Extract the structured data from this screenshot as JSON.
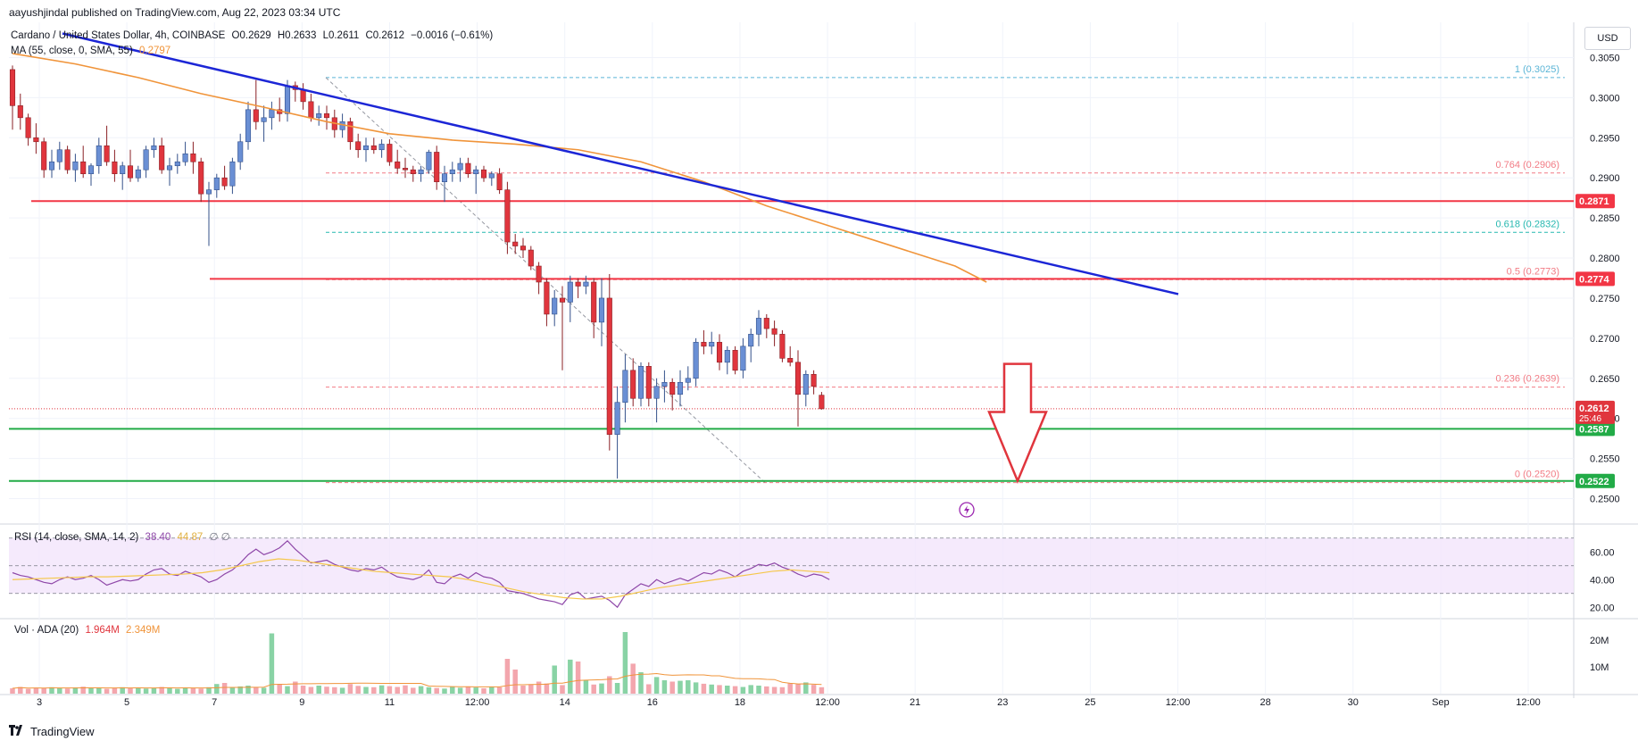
{
  "header": {
    "publisher": "aayushjindal published on TradingView.com, Aug 22, 2023 03:34 UTC"
  },
  "symbol_line": {
    "name": "Cardano / United States Dollar, 4h, COINBASE",
    "open": "O0.2629",
    "high": "H0.2633",
    "low": "L0.2611",
    "close": "C0.2612",
    "change": "−0.0016 (−0.61%)"
  },
  "ma_legend": {
    "label": "MA (55, close, 0, SMA, 55)",
    "value": "0.2797"
  },
  "rsi_legend": {
    "label": "RSI (14, close, SMA, 14, 2)",
    "value1": "38.40",
    "value2": "44.87",
    "extra": "∅  ∅"
  },
  "vol_legend": {
    "label": "Vol · ADA (20)",
    "value1": "1.964M",
    "value2": "2.349M"
  },
  "currency_button": "USD",
  "footer_logo": "TradingView",
  "colors": {
    "up": "#6a8fd4",
    "down": "#e0353d",
    "ma": "#f0943a",
    "trendline": "#1c26d6",
    "level": "#f23645",
    "support": "#22ab47",
    "fib": "#f27c85",
    "fib_top": "#5bb5d6",
    "fib_618": "#27b8b0",
    "rsi": "#8e47a8",
    "rsi_ma": "#f5c74a",
    "vol_up": "#89d3a5",
    "vol_down": "#f3a6ad"
  },
  "chart_data": {
    "type": "candlestick",
    "interval": "4h",
    "price_axis": {
      "ylim": [
        0.2475,
        0.3085
      ],
      "ticks": [
        "0.3050",
        "0.3000",
        "0.2950",
        "0.2900",
        "0.2850",
        "0.2800",
        "0.2750",
        "0.2700",
        "0.2650",
        "0.2600",
        "0.2550",
        "0.2500"
      ]
    },
    "x_ticks": [
      "3",
      "5",
      "7",
      "9",
      "11",
      "12:00",
      "14",
      "16",
      "18",
      "12:00",
      "21",
      "23",
      "25",
      "12:00",
      "28",
      "30",
      "Sep",
      "12:00"
    ],
    "candles": [
      [
        0.3035,
        0.304,
        0.296,
        0.299
      ],
      [
        0.299,
        0.3005,
        0.296,
        0.2975
      ],
      [
        0.2975,
        0.298,
        0.294,
        0.295
      ],
      [
        0.295,
        0.2968,
        0.293,
        0.2945
      ],
      [
        0.2945,
        0.295,
        0.29,
        0.291
      ],
      [
        0.291,
        0.2935,
        0.29,
        0.292
      ],
      [
        0.292,
        0.2945,
        0.291,
        0.2935
      ],
      [
        0.2935,
        0.294,
        0.2905,
        0.291
      ],
      [
        0.291,
        0.293,
        0.2895,
        0.292
      ],
      [
        0.292,
        0.294,
        0.29,
        0.2905
      ],
      [
        0.2905,
        0.2918,
        0.289,
        0.2915
      ],
      [
        0.2915,
        0.295,
        0.2905,
        0.294
      ],
      [
        0.294,
        0.2965,
        0.2915,
        0.292
      ],
      [
        0.292,
        0.2935,
        0.2895,
        0.2905
      ],
      [
        0.2905,
        0.292,
        0.2885,
        0.2915
      ],
      [
        0.2915,
        0.2935,
        0.2895,
        0.29
      ],
      [
        0.29,
        0.2915,
        0.2895,
        0.291
      ],
      [
        0.291,
        0.294,
        0.29,
        0.2935
      ],
      [
        0.2935,
        0.295,
        0.2925,
        0.294
      ],
      [
        0.294,
        0.295,
        0.2905,
        0.291
      ],
      [
        0.291,
        0.2925,
        0.289,
        0.2915
      ],
      [
        0.2915,
        0.293,
        0.2905,
        0.292
      ],
      [
        0.292,
        0.2945,
        0.2915,
        0.293
      ],
      [
        0.293,
        0.2945,
        0.2905,
        0.292
      ],
      [
        0.292,
        0.2925,
        0.287,
        0.288
      ],
      [
        0.288,
        0.2895,
        0.2815,
        0.2885
      ],
      [
        0.2885,
        0.2905,
        0.2875,
        0.29
      ],
      [
        0.29,
        0.2915,
        0.2885,
        0.289
      ],
      [
        0.289,
        0.2925,
        0.288,
        0.292
      ],
      [
        0.292,
        0.2955,
        0.291,
        0.2945
      ],
      [
        0.2945,
        0.2995,
        0.2935,
        0.2985
      ],
      [
        0.2985,
        0.3022,
        0.296,
        0.297
      ],
      [
        0.297,
        0.299,
        0.2945,
        0.2975
      ],
      [
        0.2975,
        0.2995,
        0.296,
        0.2985
      ],
      [
        0.2985,
        0.3,
        0.297,
        0.298
      ],
      [
        0.298,
        0.3022,
        0.297,
        0.3015
      ],
      [
        0.3015,
        0.302,
        0.2995,
        0.301
      ],
      [
        0.301,
        0.3018,
        0.2985,
        0.2995
      ],
      [
        0.2995,
        0.3005,
        0.297,
        0.2975
      ],
      [
        0.2975,
        0.299,
        0.2965,
        0.298
      ],
      [
        0.298,
        0.299,
        0.296,
        0.2975
      ],
      [
        0.2975,
        0.2985,
        0.295,
        0.296
      ],
      [
        0.296,
        0.298,
        0.295,
        0.297
      ],
      [
        0.297,
        0.2975,
        0.2935,
        0.2945
      ],
      [
        0.2945,
        0.2955,
        0.2925,
        0.2935
      ],
      [
        0.2935,
        0.295,
        0.292,
        0.294
      ],
      [
        0.294,
        0.295,
        0.293,
        0.2935
      ],
      [
        0.2935,
        0.2948,
        0.2925,
        0.2942
      ],
      [
        0.2942,
        0.2948,
        0.2915,
        0.292
      ],
      [
        0.292,
        0.2935,
        0.2905,
        0.2912
      ],
      [
        0.2912,
        0.2925,
        0.29,
        0.291
      ],
      [
        0.291,
        0.2915,
        0.2895,
        0.2905
      ],
      [
        0.2905,
        0.2915,
        0.2895,
        0.291
      ],
      [
        0.291,
        0.2935,
        0.2905,
        0.2932
      ],
      [
        0.2932,
        0.294,
        0.2885,
        0.2895
      ],
      [
        0.2895,
        0.2915,
        0.287,
        0.2905
      ],
      [
        0.2905,
        0.292,
        0.2895,
        0.291
      ],
      [
        0.291,
        0.2925,
        0.2895,
        0.2918
      ],
      [
        0.2918,
        0.2925,
        0.29,
        0.2905
      ],
      [
        0.2905,
        0.2915,
        0.288,
        0.291
      ],
      [
        0.291,
        0.2915,
        0.2895,
        0.29
      ],
      [
        0.29,
        0.2908,
        0.289,
        0.2905
      ],
      [
        0.2905,
        0.2912,
        0.288,
        0.2885
      ],
      [
        0.2885,
        0.2895,
        0.2805,
        0.282
      ],
      [
        0.282,
        0.283,
        0.2805,
        0.2815
      ],
      [
        0.2815,
        0.2825,
        0.28,
        0.281
      ],
      [
        0.281,
        0.2815,
        0.2785,
        0.279
      ],
      [
        0.279,
        0.2795,
        0.2755,
        0.277
      ],
      [
        0.277,
        0.2775,
        0.2715,
        0.273
      ],
      [
        0.273,
        0.276,
        0.2715,
        0.275
      ],
      [
        0.275,
        0.2765,
        0.266,
        0.2745
      ],
      [
        0.2745,
        0.2778,
        0.272,
        0.277
      ],
      [
        0.277,
        0.2775,
        0.275,
        0.2765
      ],
      [
        0.2765,
        0.2778,
        0.2755,
        0.277
      ],
      [
        0.277,
        0.2775,
        0.27,
        0.272
      ],
      [
        0.272,
        0.2775,
        0.269,
        0.275
      ],
      [
        0.275,
        0.278,
        0.256,
        0.258
      ],
      [
        0.258,
        0.264,
        0.2525,
        0.262
      ],
      [
        0.262,
        0.268,
        0.2595,
        0.266
      ],
      [
        0.266,
        0.2675,
        0.2615,
        0.2625
      ],
      [
        0.2625,
        0.267,
        0.2615,
        0.2665
      ],
      [
        0.2665,
        0.267,
        0.2615,
        0.2625
      ],
      [
        0.2625,
        0.265,
        0.2595,
        0.264
      ],
      [
        0.264,
        0.266,
        0.262,
        0.2645
      ],
      [
        0.2645,
        0.265,
        0.261,
        0.263
      ],
      [
        0.263,
        0.266,
        0.2615,
        0.2645
      ],
      [
        0.2645,
        0.2665,
        0.2635,
        0.265
      ],
      [
        0.265,
        0.27,
        0.264,
        0.2695
      ],
      [
        0.2695,
        0.271,
        0.268,
        0.269
      ],
      [
        0.269,
        0.2708,
        0.268,
        0.2695
      ],
      [
        0.2695,
        0.2705,
        0.266,
        0.267
      ],
      [
        0.267,
        0.269,
        0.2655,
        0.2685
      ],
      [
        0.2685,
        0.269,
        0.2655,
        0.266
      ],
      [
        0.266,
        0.27,
        0.265,
        0.269
      ],
      [
        0.269,
        0.2712,
        0.267,
        0.2705
      ],
      [
        0.2705,
        0.2735,
        0.269,
        0.2725
      ],
      [
        0.2725,
        0.273,
        0.27,
        0.2712
      ],
      [
        0.2712,
        0.2722,
        0.269,
        0.2705
      ],
      [
        0.2705,
        0.271,
        0.267,
        0.2675
      ],
      [
        0.2675,
        0.269,
        0.2665,
        0.267
      ],
      [
        0.267,
        0.2685,
        0.259,
        0.263
      ],
      [
        0.263,
        0.266,
        0.2615,
        0.2655
      ],
      [
        0.2655,
        0.266,
        0.263,
        0.264
      ],
      [
        0.2629,
        0.2633,
        0.2611,
        0.2612
      ]
    ],
    "ma_55": [
      [
        0,
        0.3055
      ],
      [
        8,
        0.3042
      ],
      [
        16,
        0.3025
      ],
      [
        24,
        0.3005
      ],
      [
        32,
        0.2988
      ],
      [
        40,
        0.297
      ],
      [
        48,
        0.2955
      ],
      [
        56,
        0.2947
      ],
      [
        64,
        0.2942
      ],
      [
        72,
        0.2935
      ],
      [
        80,
        0.292
      ],
      [
        88,
        0.2895
      ],
      [
        96,
        0.2865
      ],
      [
        104,
        0.284
      ],
      [
        112,
        0.2815
      ],
      [
        120,
        0.279
      ],
      [
        124,
        0.277
      ]
    ],
    "trendline": [
      [
        0.2625,
        0.308
      ],
      [
        0.2585,
        0.3037
      ],
      [
        -0.7,
        0.2755
      ]
    ],
    "horizontal_levels": [
      {
        "price": 0.2871,
        "label": "0.2871",
        "kind": "resistance"
      },
      {
        "price": 0.2774,
        "label": "0.2774",
        "kind": "resistance"
      },
      {
        "price": 0.2587,
        "label": "0.2587",
        "kind": "support"
      },
      {
        "price": 0.2522,
        "label": "0.2522",
        "kind": "support"
      }
    ],
    "current_price": {
      "price": 0.2612,
      "label": "0.2612",
      "countdown": "25:46"
    },
    "fibonacci": [
      {
        "ratio": "1",
        "price": 0.3025,
        "label": "1 (0.3025)"
      },
      {
        "ratio": "0.764",
        "price": 0.2906,
        "label": "0.764 (0.2906)"
      },
      {
        "ratio": "0.618",
        "price": 0.2832,
        "label": "0.618 (0.2832)"
      },
      {
        "ratio": "0.5",
        "price": 0.2773,
        "label": "0.5 (0.2773)"
      },
      {
        "ratio": "0.236",
        "price": 0.2639,
        "label": "0.236 (0.2639)"
      },
      {
        "ratio": "0",
        "price": 0.252,
        "label": "0 (0.2520)"
      }
    ],
    "annotation": "down-arrow",
    "rsi": {
      "ylim": [
        15,
        75
      ],
      "ticks": [
        "60.00",
        "40.00",
        "20.00"
      ],
      "bands": [
        30,
        50,
        70
      ],
      "values": [
        45,
        43,
        42,
        40,
        38,
        37,
        40,
        42,
        40,
        41,
        43,
        40,
        36,
        38,
        40,
        39,
        40,
        44,
        47,
        48,
        44,
        43,
        46,
        44,
        42,
        38,
        40,
        44,
        47,
        52,
        58,
        62,
        58,
        60,
        63,
        68,
        62,
        57,
        52,
        53,
        54,
        51,
        49,
        47,
        46,
        48,
        47,
        49,
        45,
        42,
        41,
        40,
        42,
        47,
        38,
        37,
        42,
        44,
        41,
        45,
        42,
        41,
        38,
        32,
        31,
        30,
        28,
        26,
        25,
        24,
        22,
        29,
        31,
        26,
        27,
        28,
        25,
        20,
        29,
        33,
        37,
        35,
        40,
        37,
        39,
        41,
        39,
        42,
        45,
        44,
        47,
        45,
        42,
        46,
        48,
        51,
        50,
        52,
        49,
        47,
        44,
        42,
        44,
        43,
        40
      ],
      "ma": [
        40,
        40.5,
        41,
        41.5,
        42,
        42,
        42.5,
        43,
        43.5,
        44,
        45,
        47,
        50,
        53,
        55,
        54,
        52,
        50,
        48,
        46,
        45,
        44,
        43,
        42,
        40,
        37,
        34,
        31,
        29,
        27,
        26,
        26,
        28,
        31,
        34,
        36,
        38,
        40,
        42,
        44,
        46,
        47,
        46,
        45
      ]
    },
    "volume": {
      "ylim": [
        0,
        25
      ],
      "ticks": [
        "20M",
        "10M"
      ],
      "unit": "M",
      "values": [
        2,
        2.5,
        1.8,
        2.2,
        2,
        2.4,
        2.1,
        1.9,
        2.3,
        2.6,
        2,
        2.2,
        1.8,
        2.1,
        2.4,
        2,
        2.2,
        1.9,
        2.1,
        2.5,
        2.3,
        1.8,
        2.2,
        2,
        1.9,
        2.4,
        3.6,
        4,
        2.5,
        2.7,
        3,
        2.4,
        2.2,
        22.5,
        3.5,
        2.8,
        4.5,
        3,
        2.5,
        3,
        2.6,
        2.4,
        2.2,
        3.6,
        2.9,
        2.5,
        2.4,
        3.1,
        2.8,
        2.5,
        3.1,
        2.2,
        2.8,
        2.4,
        2.1,
        1.9,
        2.5,
        2.2,
        2.7,
        2.3,
        2,
        2.6,
        2.4,
        13,
        9,
        3,
        3.5,
        4.5,
        3.8,
        10.5,
        3.2,
        12.7,
        12,
        5,
        3.4,
        3.8,
        6.5,
        4,
        23,
        11.2,
        8,
        3.5,
        6.2,
        5,
        4.5,
        4.8,
        5,
        4.2,
        3.7,
        3.4,
        3.2,
        3,
        2.8,
        2.5,
        3.2,
        3,
        2.7,
        2.5,
        2.4,
        3.8,
        3.5,
        4.2,
        3.3,
        2.4
      ]
    }
  }
}
